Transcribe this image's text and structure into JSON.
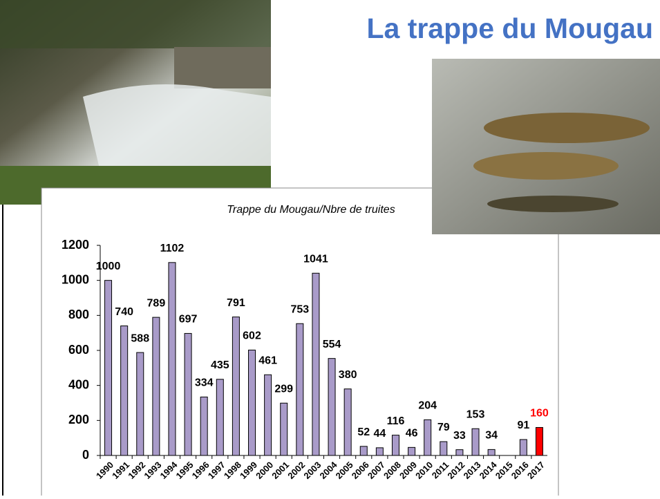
{
  "slide": {
    "title": "La trappe du Mougau"
  },
  "chart_data": {
    "type": "bar",
    "title": "Trappe du Mougau/Nbre de truites",
    "categories": [
      "1990",
      "1991",
      "1992",
      "1993",
      "1994",
      "1995",
      "1996",
      "1997",
      "1998",
      "1999",
      "2000",
      "2001",
      "2002",
      "2003",
      "2004",
      "2005",
      "2006",
      "2007",
      "2008",
      "2009",
      "2010",
      "2011",
      "2012",
      "2013",
      "2014",
      "2015",
      "2016",
      "2017"
    ],
    "values": [
      1000,
      740,
      588,
      789,
      1102,
      697,
      334,
      435,
      791,
      602,
      461,
      299,
      753,
      1041,
      554,
      380,
      52,
      44,
      116,
      46,
      204,
      79,
      33,
      153,
      34,
      null,
      91,
      160
    ],
    "color": "#a99bc9",
    "colors": [
      "#a99bc9",
      "#a99bc9",
      "#a99bc9",
      "#a99bc9",
      "#a99bc9",
      "#a99bc9",
      "#a99bc9",
      "#a99bc9",
      "#a99bc9",
      "#a99bc9",
      "#a99bc9",
      "#a99bc9",
      "#a99bc9",
      "#a99bc9",
      "#a99bc9",
      "#a99bc9",
      "#a99bc9",
      "#a99bc9",
      "#a99bc9",
      "#a99bc9",
      "#a99bc9",
      "#a99bc9",
      "#a99bc9",
      "#a99bc9",
      "#a99bc9",
      "#a99bc9",
      "#a99bc9",
      "#ff0000"
    ],
    "ylim": [
      0,
      1200
    ],
    "yticks": [
      0,
      200,
      400,
      600,
      800,
      1000,
      1200
    ],
    "grid": false
  }
}
